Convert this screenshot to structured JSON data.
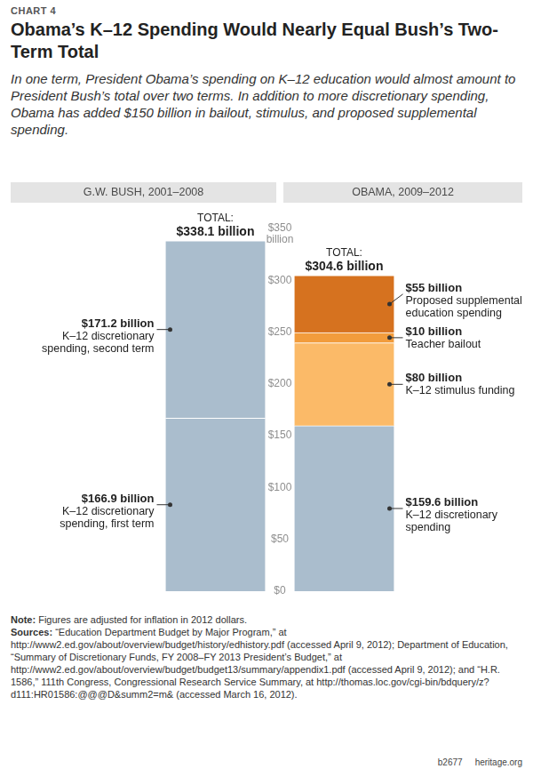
{
  "chart_data": {
    "type": "bar",
    "label": "CHART 4",
    "title": "Obama’s K–12 Spending Would Nearly Equal Bush’s Two-Term Total",
    "subtitle": "In one term, President Obama’s spending on K–12 education would almost amount to President Bush’s total over two terms. In addition to more discretionary spending, Obama has added $150 billion in bailout, stimulus, and proposed supplemental spending.",
    "categories": [
      "G.W. BUSH, 2001–2008",
      "OBAMA, 2009–2012"
    ],
    "series": [
      {
        "name": "K–12 discretionary spending, first term",
        "color": "#aabdcd",
        "values": [
          166.9,
          null
        ],
        "value_labels": [
          "$166.9 billion",
          null
        ]
      },
      {
        "name": "K–12 discretionary spending, second term",
        "color": "#aabdcd",
        "values": [
          171.2,
          null
        ],
        "value_labels": [
          "$171.2 billion",
          null
        ]
      },
      {
        "name": "K–12 discretionary spending",
        "color": "#aabdcd",
        "values": [
          null,
          159.6
        ],
        "value_labels": [
          null,
          "$159.6 billion"
        ]
      },
      {
        "name": "K–12 stimulus funding",
        "color": "#fbba68",
        "values": [
          null,
          80
        ],
        "value_labels": [
          null,
          "$80 billion"
        ]
      },
      {
        "name": "Teacher bailout",
        "color": "#f29c3c",
        "values": [
          null,
          10
        ],
        "value_labels": [
          null,
          "$10 billion"
        ]
      },
      {
        "name": "Proposed supplemental education spending",
        "color": "#d6721f",
        "values": [
          null,
          55
        ],
        "value_labels": [
          null,
          "$55 billion"
        ]
      }
    ],
    "total_label": "TOTAL:",
    "totals": [
      338.1,
      304.6
    ],
    "total_value_labels": [
      "$338.1 billion",
      "$304.6 billion"
    ],
    "ylim": [
      0,
      350
    ],
    "yticks": [
      {
        "value": 0,
        "label": "$0"
      },
      {
        "value": 50,
        "label": "$50"
      },
      {
        "value": 100,
        "label": "$100"
      },
      {
        "value": 150,
        "label": "$150"
      },
      {
        "value": 200,
        "label": "$200"
      },
      {
        "value": 250,
        "label": "$250"
      },
      {
        "value": 300,
        "label": "$300"
      },
      {
        "value": 350,
        "label": "$350 billion"
      }
    ],
    "stacked": true,
    "grid": false,
    "data_labels": true,
    "note": "Note: Figures are adjusted for inflation in 2012 dollars.",
    "sources": "Sources: “Education Department Budget by Major Program,” at http://www2.ed.gov/about/overview/budget/history/edhistory.pdf (accessed April 9, 2012); Department of Education, “Summary of Discretionary Funds, FY 2008–FY 2013 President’s Budget,” at http://www2.ed.gov/about/overview/budget/budget13/summary/appendix1.pdf (accessed April 9, 2012); and “H.R. 1586,” 111th Congress, Congressional Research Service Summary, at http://thomas.loc.gov/cgi-bin/bdquery/z?d111:HR01586:@@@D&summ2=m& (accessed March 16, 2012).",
    "footer_code": "b2677",
    "footer_site": "heritage.org"
  }
}
